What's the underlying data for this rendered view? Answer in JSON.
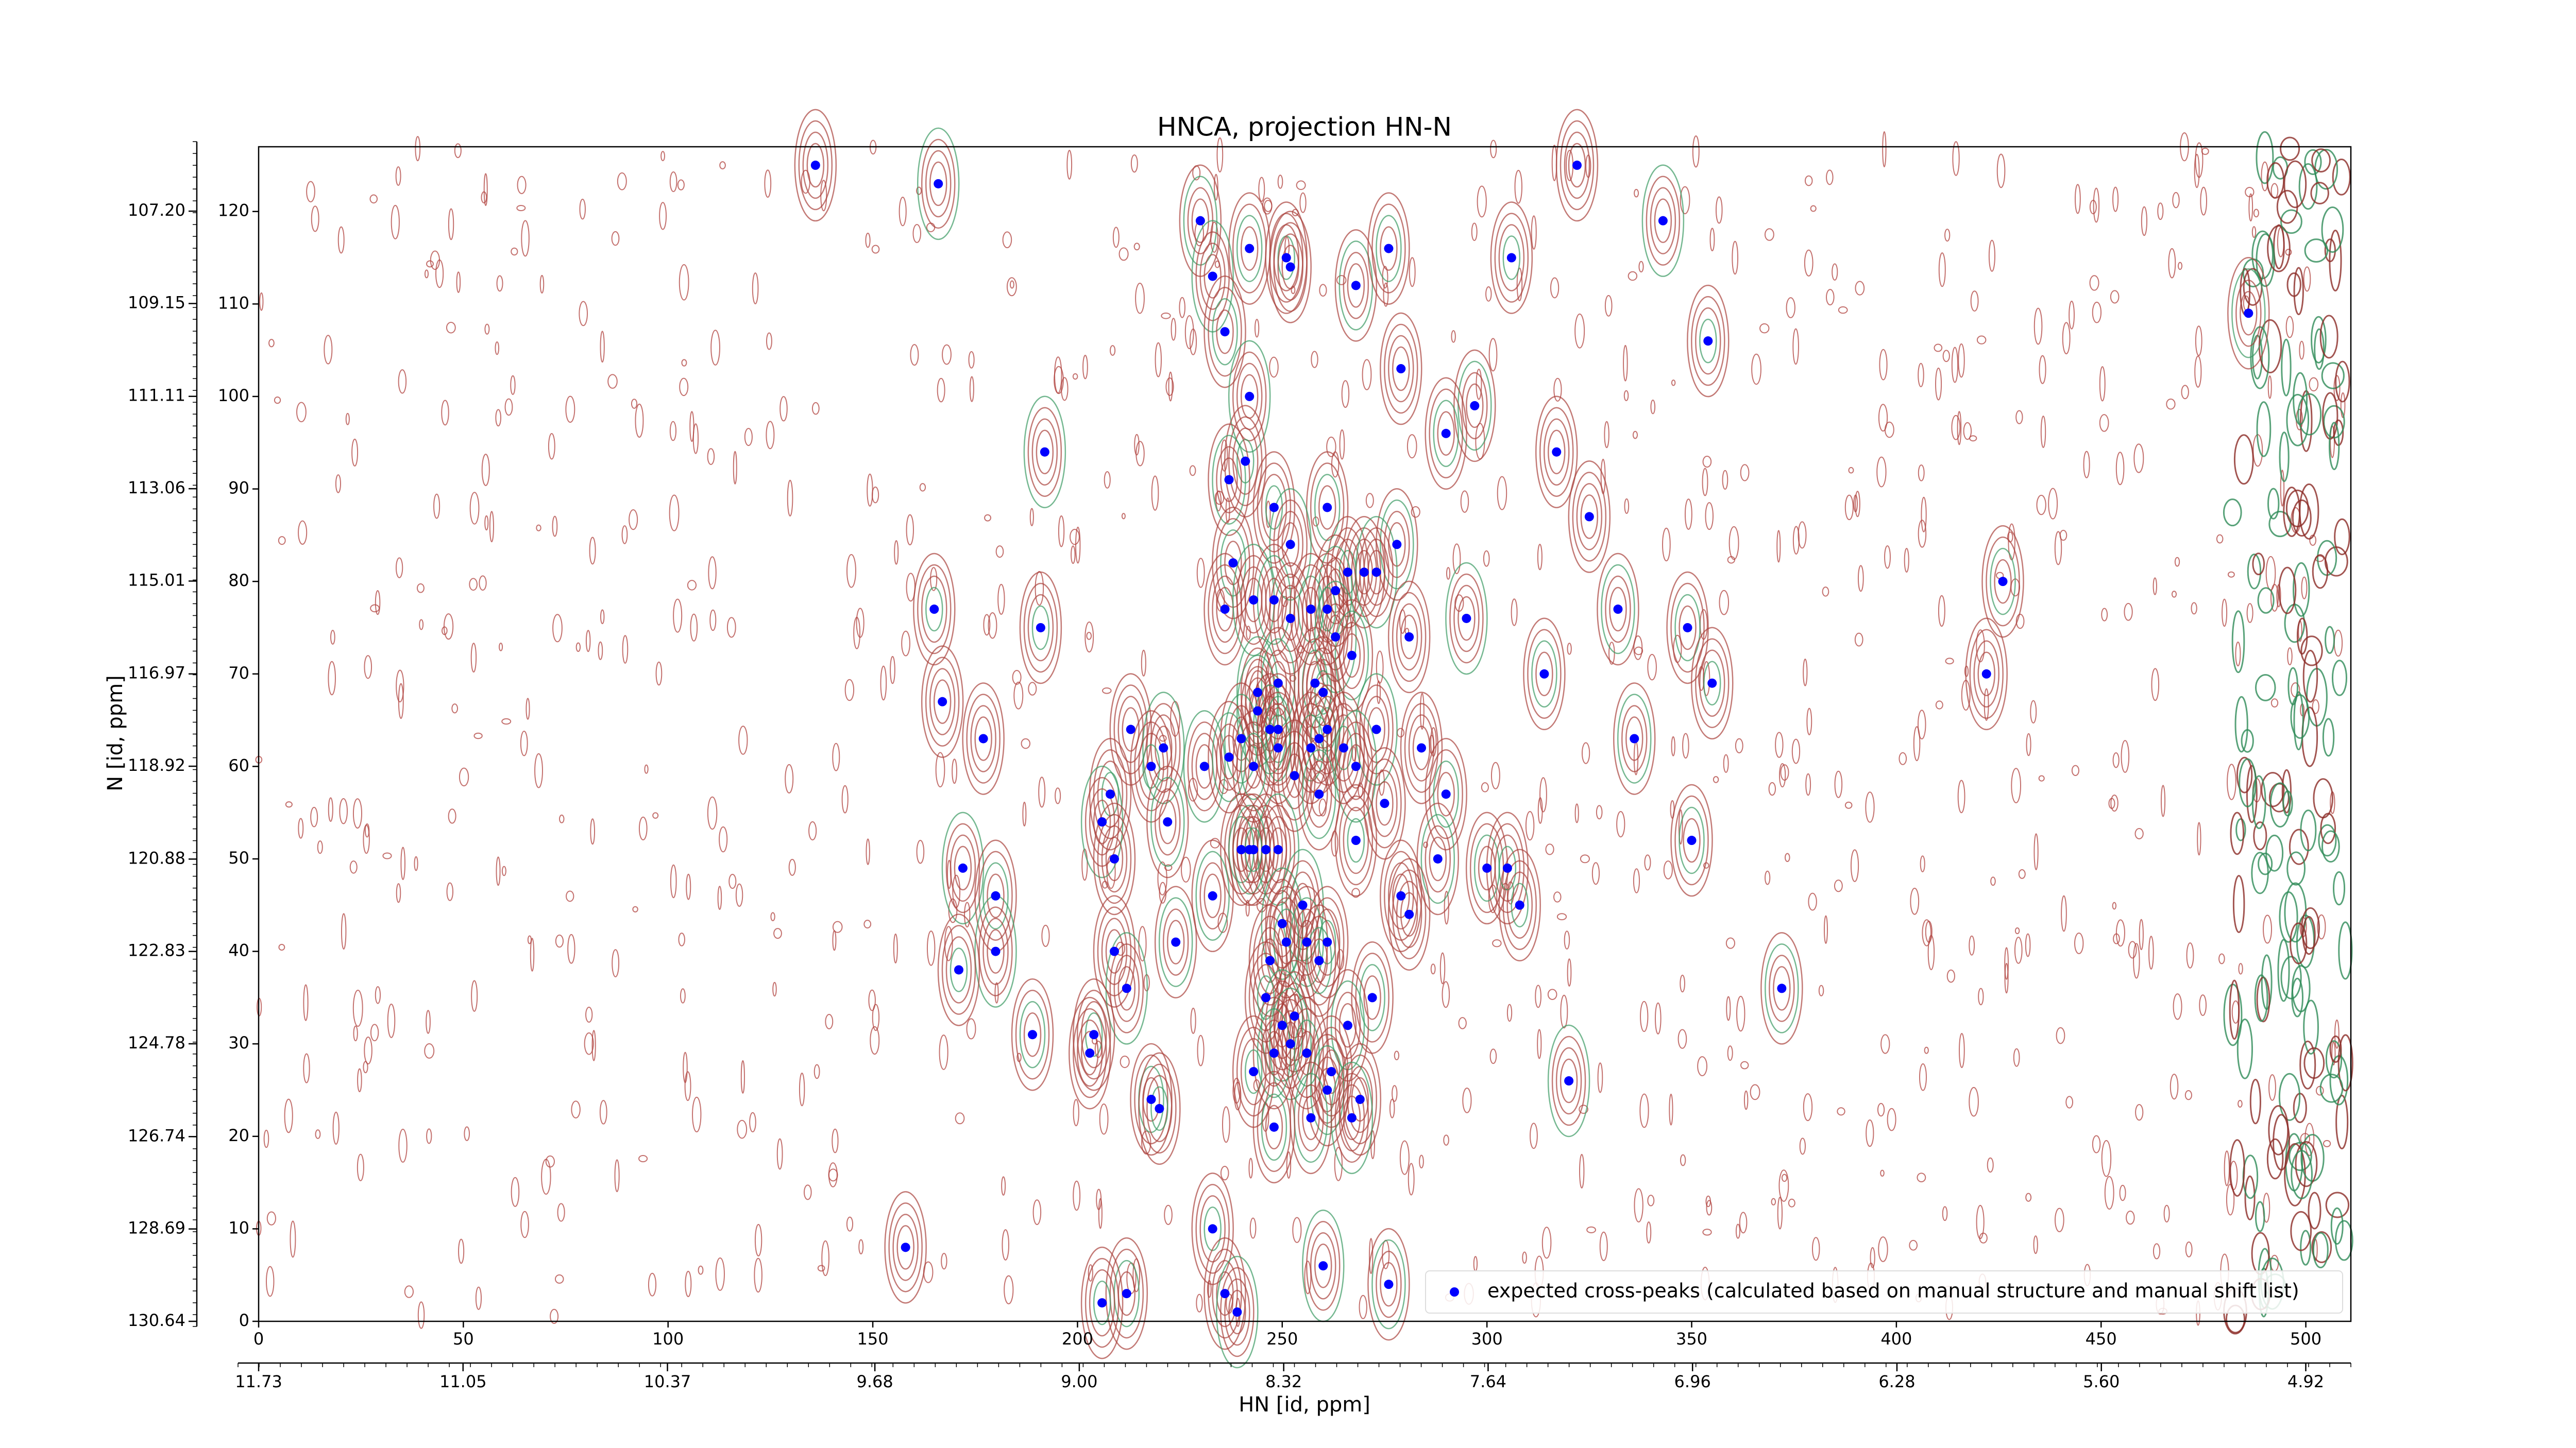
{
  "chart_data": {
    "type": "scatter",
    "title": "HNCA, projection HN-N",
    "x_label": "HN [id, ppm]",
    "y_label": "N [id, ppm]",
    "xlim": [
      0,
      511
    ],
    "xticks": [
      0,
      50,
      100,
      150,
      200,
      250,
      300,
      350,
      400,
      450,
      500
    ],
    "ylim": [
      0,
      127
    ],
    "yticks": [
      0,
      10,
      20,
      30,
      40,
      50,
      60,
      70,
      80,
      90,
      100,
      110,
      120
    ],
    "x2lim": [
      11.73,
      4.77
    ],
    "x2ticks": [
      11.73,
      11.05,
      10.37,
      9.68,
      {
        "value": 9,
        "label": "9.00"
      },
      8.32,
      7.64,
      6.96,
      6.28,
      {
        "value": 5.6,
        "label": "5.60"
      },
      4.92
    ],
    "y2lim": [
      130.64,
      105.84
    ],
    "y2ticks": [
      130.64,
      128.69,
      126.74,
      124.78,
      122.83,
      120.88,
      118.92,
      116.97,
      115.01,
      113.06,
      111.11,
      109.15,
      {
        "value": 107.2,
        "label": "107.20"
      }
    ],
    "legend": "lower right",
    "x": [
      136,
      166,
      230,
      242,
      251,
      252,
      233,
      268,
      276,
      306,
      322,
      343,
      486,
      236,
      354,
      279,
      242,
      297,
      290,
      241,
      317,
      192,
      237,
      261,
      248,
      325,
      252,
      278,
      238,
      266,
      270,
      273,
      263,
      426,
      165,
      236,
      243,
      248,
      257,
      261,
      252,
      295,
      332,
      349,
      191,
      281,
      263,
      267,
      314,
      355,
      422,
      244,
      249,
      258,
      260,
      167,
      244,
      247,
      249,
      261,
      213,
      221,
      240,
      257,
      259,
      177,
      273,
      336,
      249,
      265,
      284,
      231,
      237,
      243,
      218,
      253,
      268,
      259,
      290,
      208,
      275,
      206,
      222,
      350,
      268,
      246,
      249,
      242,
      240,
      243,
      209,
      172,
      288,
      300,
      305,
      279,
      255,
      233,
      180,
      308,
      281,
      250,
      256,
      251,
      261,
      209,
      180,
      224,
      259,
      171,
      247,
      212,
      372,
      272,
      246,
      253,
      250,
      266,
      189,
      204,
      203,
      252,
      248,
      256,
      243,
      262,
      320,
      261,
      218,
      220,
      269,
      267,
      257,
      248,
      233,
      158,
      260,
      276,
      212,
      206,
      236,
      239
    ],
    "series": [
      {
        "name": "expected cross-peaks (calculated based on manual structure and manual shift list)",
        "color": "#0000ff",
        "values": [
          125,
          123,
          119,
          116,
          115,
          114,
          113,
          112,
          116,
          115,
          125,
          119,
          109,
          107,
          106,
          103,
          100,
          99,
          96,
          93,
          94,
          94,
          91,
          88,
          88,
          87,
          84,
          84,
          82,
          81,
          81,
          81,
          79,
          80,
          77,
          77,
          78,
          78,
          77,
          77,
          76,
          76,
          77,
          75,
          75,
          74,
          74,
          72,
          70,
          69,
          70,
          68,
          69,
          69,
          68,
          67,
          66,
          64,
          64,
          64,
          64,
          62,
          63,
          62,
          63,
          63,
          64,
          63,
          62,
          62,
          62,
          60,
          61,
          60,
          60,
          59,
          60,
          57,
          57,
          57,
          56,
          54,
          54,
          52,
          52,
          51,
          51,
          51,
          51,
          51,
          50,
          49,
          50,
          49,
          49,
          46,
          45,
          46,
          46,
          45,
          44,
          43,
          41,
          41,
          41,
          40,
          40,
          41,
          39,
          38,
          39,
          36,
          36,
          35,
          35,
          33,
          32,
          32,
          31,
          31,
          29,
          30,
          29,
          29,
          27,
          27,
          26,
          25,
          24,
          23,
          24,
          22,
          22,
          21,
          10,
          8,
          6,
          4,
          3,
          2,
          3,
          1
        ]
      }
    ]
  }
}
